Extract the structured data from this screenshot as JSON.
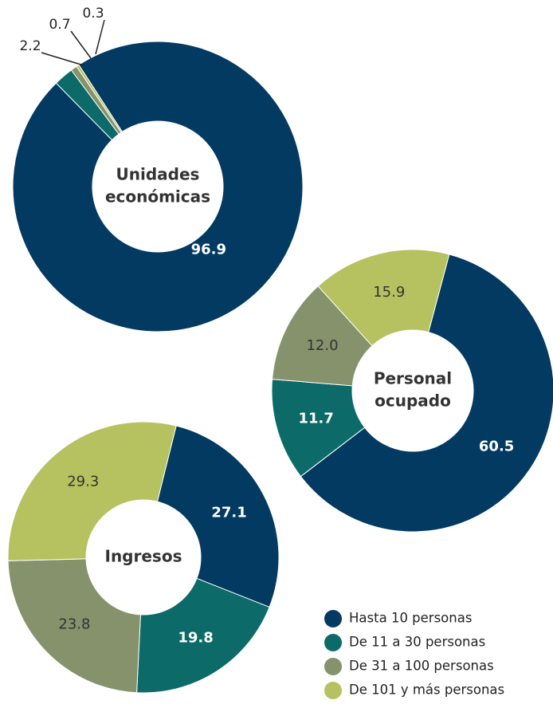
{
  "chart_data": [
    {
      "type": "donut",
      "title": [
        "Unidades",
        "económicas"
      ],
      "values": [
        96.9,
        2.2,
        0.7,
        0.3
      ]
    },
    {
      "type": "donut",
      "title": [
        "Personal",
        "ocupado"
      ],
      "values": [
        60.5,
        11.7,
        12.0,
        15.9
      ],
      "value_labels": [
        "60.5",
        "11.7",
        "12.0",
        "15.9"
      ]
    },
    {
      "type": "donut",
      "title": [
        "Ingresos"
      ],
      "values": [
        27.1,
        19.8,
        23.8,
        29.3
      ]
    }
  ],
  "legend": {
    "categories": [
      "Hasta 10 personas",
      "De 11 a 30 personas",
      "De 31 a 100 personas",
      "De 101 y más personas"
    ],
    "colors": [
      "#023a62",
      "#0c6a68",
      "#85926b",
      "#b6c15f"
    ]
  }
}
